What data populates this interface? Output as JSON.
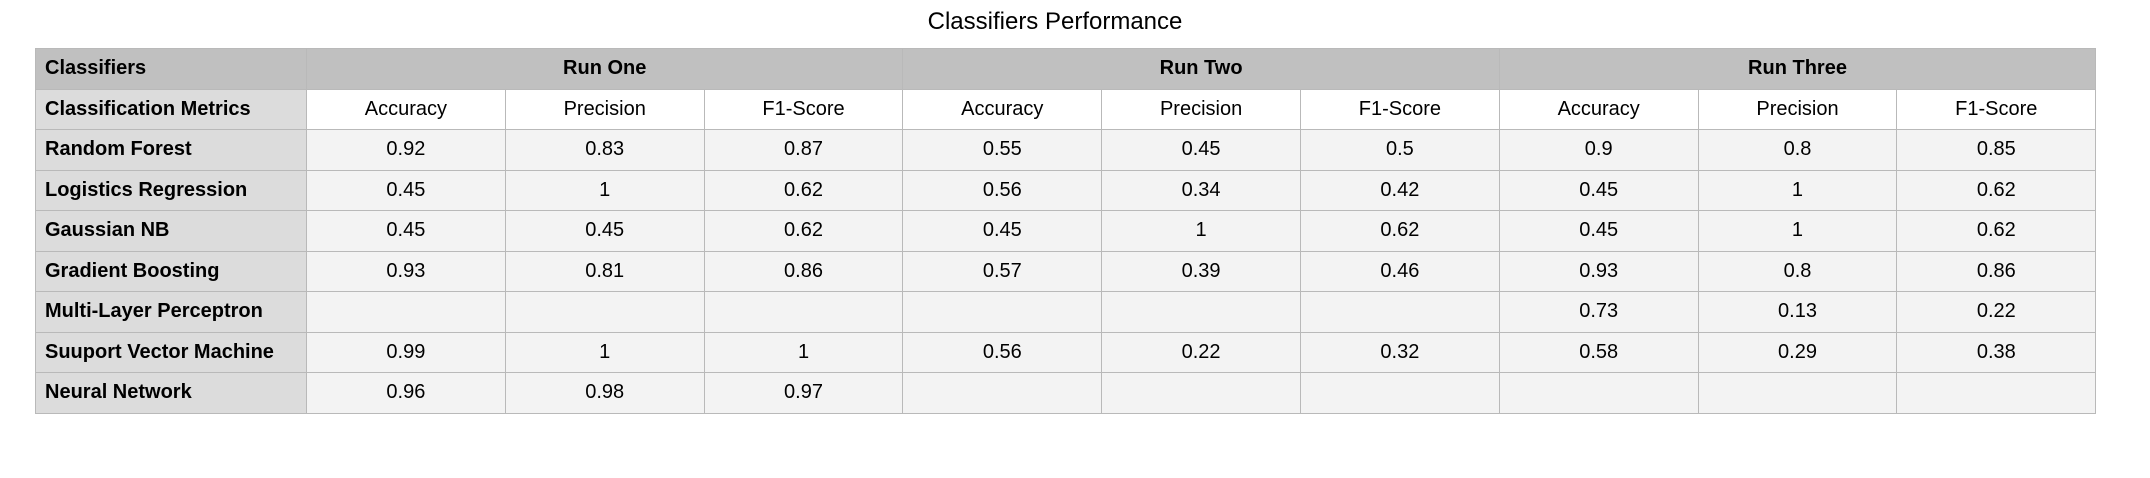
{
  "title": "Classifiers Performance",
  "header": {
    "corner_label": "Classifiers",
    "runs": [
      "Run One",
      "Run Two",
      "Run Three"
    ]
  },
  "metrics_header": {
    "label": "Classification Metrics",
    "metrics": [
      "Accuracy",
      "Precision",
      "F1-Score",
      "Accuracy",
      "Precision",
      "F1-Score",
      "Accuracy",
      "Precision",
      "F1-Score"
    ]
  },
  "rows": [
    {
      "name": "Random Forest",
      "values": [
        "0.92",
        "0.83",
        "0.87",
        "0.55",
        "0.45",
        "0.5",
        "0.9",
        "0.8",
        "0.85"
      ]
    },
    {
      "name": "Logistics Regression",
      "values": [
        "0.45",
        "1",
        "0.62",
        "0.56",
        "0.34",
        "0.42",
        "0.45",
        "1",
        "0.62"
      ]
    },
    {
      "name": "Gaussian NB",
      "values": [
        "0.45",
        "0.45",
        "0.62",
        "0.45",
        "1",
        "0.62",
        "0.45",
        "1",
        "0.62"
      ]
    },
    {
      "name": "Gradient Boosting",
      "values": [
        "0.93",
        "0.81",
        "0.86",
        "0.57",
        "0.39",
        "0.46",
        "0.93",
        "0.8",
        "0.86"
      ]
    },
    {
      "name": "Multi-Layer Perceptron",
      "values": [
        "",
        "",
        "",
        "",
        "",
        "",
        "0.73",
        "0.13",
        "0.22"
      ]
    },
    {
      "name": "Suuport Vector Machine",
      "values": [
        "0.99",
        "1",
        "1",
        "0.56",
        "0.22",
        "0.32",
        "0.58",
        "0.29",
        "0.38"
      ]
    },
    {
      "name": "Neural Network",
      "values": [
        "0.96",
        "0.98",
        "0.97",
        "",
        "",
        "",
        "",
        "",
        ""
      ]
    }
  ]
}
